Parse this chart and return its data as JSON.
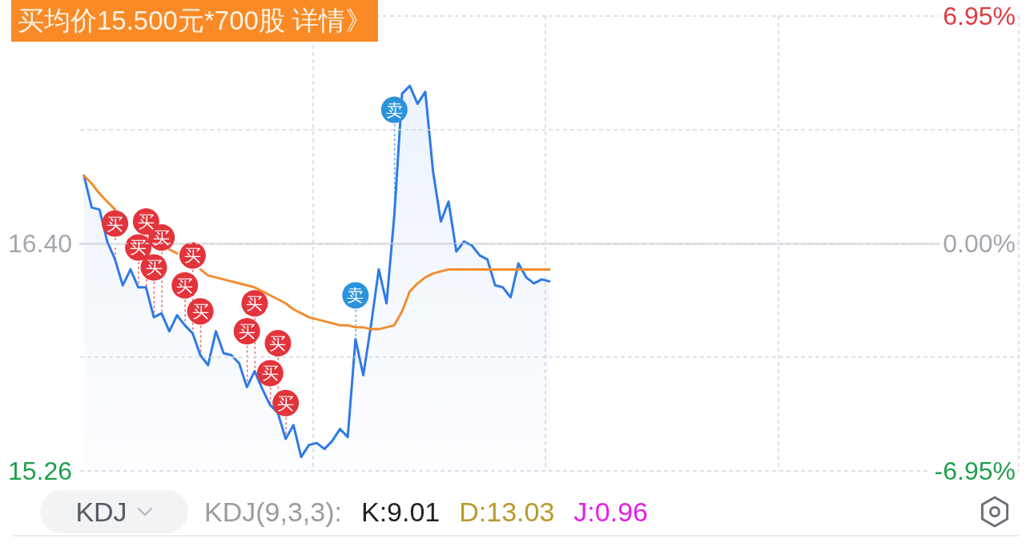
{
  "chart_data": [
    {
      "type": "line",
      "categories": [
        null,
        null,
        null,
        null,
        null,
        null,
        null,
        null,
        null,
        null,
        null,
        null,
        null,
        null,
        null,
        null,
        null,
        null,
        null,
        null,
        null,
        null,
        null,
        null,
        null,
        null,
        null,
        null,
        null,
        null,
        null,
        null,
        null,
        null,
        null,
        null,
        null,
        null,
        null,
        null,
        null,
        null,
        null,
        null,
        null,
        null,
        null,
        null,
        null,
        null,
        null,
        null,
        null,
        null,
        null,
        null,
        null,
        null,
        null,
        null,
        null,
        null,
        null,
        null,
        null,
        null,
        null,
        null,
        null,
        null,
        null,
        null,
        null,
        null,
        null,
        null,
        null,
        null,
        null,
        null,
        null,
        null,
        null,
        null,
        null,
        null,
        null,
        null,
        null,
        null,
        null,
        null,
        null,
        null,
        null,
        null,
        null,
        null,
        null,
        null,
        null,
        null,
        null,
        null,
        null,
        null,
        null,
        null,
        null,
        null,
        null,
        null,
        null,
        null,
        null,
        null,
        null,
        null,
        null,
        null,
        null
      ],
      "series": [
        {
          "type": "area",
          "color": "#2f7ae5",
          "values": [
            16.74,
            16.58,
            16.57,
            16.41,
            16.32,
            16.19,
            16.27,
            16.18,
            16.18,
            16.03,
            16.05,
            15.96,
            16.04,
            15.99,
            15.95,
            15.84,
            15.79,
            15.96,
            15.85,
            15.84,
            15.8,
            15.68,
            15.76,
            15.67,
            15.59,
            15.55,
            15.42,
            15.49,
            15.33,
            15.39,
            15.4,
            15.37,
            15.41,
            15.47,
            15.43,
            15.92,
            15.74,
            15.99,
            16.27,
            16.1,
            16.54,
            17.15,
            17.19,
            17.1,
            17.16,
            16.76,
            16.51,
            16.61,
            16.36,
            16.41,
            16.39,
            16.34,
            16.32,
            16.19,
            16.18,
            16.13,
            16.3,
            16.23,
            16.2,
            16.22,
            16.21,
            null,
            null,
            null,
            null,
            null,
            null,
            null,
            null,
            null,
            null,
            null,
            null,
            null,
            null,
            null,
            null,
            null,
            null,
            null,
            null,
            null,
            null,
            null,
            null,
            null,
            null,
            null,
            null,
            null,
            null,
            null,
            null,
            null,
            null,
            null,
            null,
            null,
            null,
            null,
            null,
            null,
            null,
            null,
            null,
            null,
            null,
            null,
            null,
            null,
            null,
            null,
            null,
            null,
            null,
            null,
            null,
            null,
            null,
            null,
            null
          ]
        },
        {
          "type": "line",
          "color": "#f28c2e",
          "values": [
            16.74,
            16.7,
            16.65,
            16.61,
            16.57,
            null,
            null,
            null,
            null,
            null,
            null,
            16.37,
            16.35,
            null,
            null,
            16.27,
            16.24,
            16.23,
            16.22,
            16.21,
            16.2,
            16.19,
            16.18,
            16.16,
            16.14,
            16.12,
            16.1,
            16.07,
            16.05,
            16.03,
            16.02,
            16.01,
            16.0,
            15.99,
            15.99,
            15.98,
            15.98,
            15.97,
            15.97,
            15.98,
            15.99,
            16.06,
            16.16,
            16.2,
            16.23,
            16.25,
            16.26,
            16.27,
            16.27,
            16.27,
            16.27,
            16.27,
            16.27,
            16.27,
            16.27,
            16.27,
            16.27,
            16.27,
            16.27,
            16.27,
            16.27,
            null,
            null,
            null,
            null,
            null,
            null,
            null,
            null,
            null,
            null,
            null,
            null,
            null,
            null,
            null,
            null,
            null,
            null,
            null,
            null,
            null,
            null,
            null,
            null,
            null,
            null,
            null,
            null,
            null,
            null,
            null,
            null,
            null,
            null,
            null,
            null,
            null,
            null,
            null,
            null,
            null,
            null,
            null,
            null,
            null,
            null,
            null,
            null,
            null,
            null,
            null,
            null,
            null,
            null,
            null,
            null,
            null,
            null,
            null,
            null
          ]
        },
        {
          "type": "scatter",
          "color": "#e3343c",
          "marker": "circle",
          "values": [
            null,
            null,
            null,
            null,
            16.5,
            null,
            null,
            16.38,
            16.51,
            16.28,
            16.43,
            null,
            null,
            16.19,
            16.34,
            16.06,
            null,
            null,
            null,
            null,
            null,
            15.96,
            16.1,
            null,
            15.75,
            15.9,
            15.6,
            null,
            null,
            null,
            null,
            null,
            null,
            null,
            null,
            null,
            null,
            null,
            null,
            null,
            null,
            null,
            null,
            null,
            null,
            null,
            null,
            null,
            null,
            null,
            null,
            null,
            null,
            null,
            null,
            null,
            null,
            null,
            null,
            null,
            null,
            null,
            null,
            null,
            null,
            null,
            null,
            null,
            null,
            null,
            null,
            null,
            null,
            null,
            null,
            null,
            null,
            null,
            null,
            null,
            null,
            null,
            null,
            null,
            null,
            null,
            null,
            null,
            null,
            null,
            null,
            null,
            null,
            null,
            null,
            null,
            null,
            null,
            null,
            null,
            null,
            null,
            null,
            null,
            null,
            null,
            null,
            null,
            null,
            null,
            null,
            null,
            null,
            null,
            null,
            null,
            null,
            null,
            null,
            null,
            null
          ],
          "value_labels": [
            null,
            null,
            null,
            null,
            "买",
            null,
            null,
            "买",
            "买",
            "买",
            "买",
            null,
            null,
            "买",
            "买",
            "买",
            null,
            null,
            null,
            null,
            null,
            "买",
            "买",
            null,
            "买",
            "买",
            "买",
            null,
            null,
            null,
            null,
            null,
            null,
            null,
            null,
            null,
            null,
            null,
            null,
            null,
            null,
            null,
            null,
            null,
            null,
            null,
            null,
            null,
            null,
            null,
            null,
            null,
            null,
            null,
            null,
            null,
            null,
            null,
            null,
            null,
            null,
            null,
            null,
            null,
            null,
            null,
            null,
            null,
            null,
            null,
            null,
            null,
            null,
            null,
            null,
            null,
            null,
            null,
            null,
            null,
            null,
            null,
            null,
            null,
            null,
            null,
            null,
            null,
            null,
            null,
            null,
            null,
            null,
            null,
            null,
            null,
            null,
            null,
            null,
            null,
            null,
            null,
            null,
            null,
            null,
            null,
            null,
            null,
            null,
            null,
            null,
            null,
            null,
            null,
            null,
            null,
            null,
            null,
            null,
            null,
            null
          ]
        },
        {
          "type": "scatter",
          "color": "#2b93dc",
          "marker": "circle",
          "values": [
            null,
            null,
            null,
            null,
            null,
            null,
            null,
            null,
            null,
            null,
            null,
            null,
            null,
            null,
            null,
            null,
            null,
            null,
            null,
            null,
            null,
            null,
            null,
            null,
            null,
            null,
            null,
            null,
            null,
            null,
            null,
            null,
            null,
            null,
            null,
            16.14,
            null,
            null,
            null,
            null,
            17.07,
            null,
            null,
            null,
            null,
            null,
            null,
            null,
            null,
            null,
            null,
            null,
            null,
            null,
            null,
            null,
            null,
            null,
            null,
            null,
            null,
            null,
            null,
            null,
            null,
            null,
            null,
            null,
            null,
            null,
            null,
            null,
            null,
            null,
            null,
            null,
            null,
            null,
            null,
            null,
            null,
            null,
            null,
            null,
            null,
            null,
            null,
            null,
            null,
            null,
            null,
            null,
            null,
            null,
            null,
            null,
            null,
            null,
            null,
            null,
            null,
            null,
            null,
            null,
            null,
            null,
            null,
            null,
            null,
            null,
            null,
            null,
            null,
            null,
            null,
            null,
            null,
            null,
            null,
            null,
            null
          ],
          "value_labels": [
            null,
            null,
            null,
            null,
            null,
            null,
            null,
            null,
            null,
            null,
            null,
            null,
            null,
            null,
            null,
            null,
            null,
            null,
            null,
            null,
            null,
            null,
            null,
            null,
            null,
            null,
            null,
            null,
            null,
            null,
            null,
            null,
            null,
            null,
            null,
            "卖",
            null,
            null,
            null,
            null,
            "卖",
            null,
            null,
            null,
            null,
            null,
            null,
            null,
            null,
            null,
            null,
            null,
            null,
            null,
            null,
            null,
            null,
            null,
            null,
            null,
            null,
            null,
            null,
            null,
            null,
            null,
            null,
            null,
            null,
            null,
            null,
            null,
            null,
            null,
            null,
            null,
            null,
            null,
            null,
            null,
            null,
            null,
            null,
            null,
            null,
            null,
            null,
            null,
            null,
            null,
            null,
            null,
            null,
            null,
            null,
            null,
            null,
            null,
            null,
            null,
            null,
            null,
            null,
            null,
            null,
            null,
            null,
            null,
            null,
            null,
            null,
            null,
            null,
            null,
            null,
            null,
            null,
            null,
            null,
            null,
            null
          ]
        }
      ],
      "ylim": [
        15.26,
        17.54
      ],
      "yticks": [
        {
          "value": 15.26,
          "label": "15.26"
        },
        {
          "value": 15.83,
          "label": null
        },
        {
          "value": 16.4,
          "label": "16.40"
        },
        {
          "value": 16.97,
          "label": null
        },
        {
          "value": 17.54,
          "label": null
        }
      ],
      "y2lim": [
        -6.95,
        6.95
      ],
      "y2ticks": [
        {
          "value": -6.95,
          "label": "-6.95%"
        },
        {
          "value": 0,
          "label": "0.00%"
        },
        {
          "value": 6.95,
          "label": "6.95%"
        }
      ],
      "grid": true,
      "marker": "none",
      "annotations": [
        "买均价15.500元*700股 详情》"
      ]
    },
    {
      "type": "other",
      "title": "KDJ",
      "annotations": [
        "KDJ(9,3,3):",
        "K:9.01",
        "D:13.03",
        "J:0.96"
      ]
    }
  ]
}
